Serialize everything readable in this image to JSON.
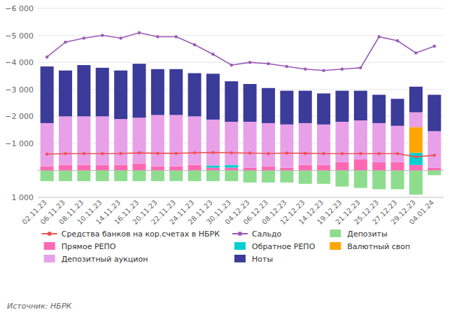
{
  "chart_data": {
    "type": "bar",
    "stacked": true,
    "grid": true,
    "legend": "bottom",
    "annotations": [
      "Источник: НБРК"
    ],
    "categories": [
      "02.11.23",
      "06.11.23",
      "08.11.23",
      "10.11.23",
      "14.11.23",
      "16.11.23",
      "20.11.23",
      "22.11.23",
      "24.11.23",
      "28.11.23",
      "30.11.23",
      "04.12.23",
      "06.12.23",
      "08.12.23",
      "12.12.23",
      "14.12.23",
      "19.12.23",
      "21.12.23",
      "25.12.23",
      "27.12.23",
      "29.12.23",
      "04.01.24"
    ],
    "ylim": [
      1000,
      -6000
    ],
    "yticks": [
      {
        "value": 1000,
        "label": "1 000"
      },
      {
        "value": 0,
        "label": null
      },
      {
        "value": -1000,
        "label": "−1 000"
      },
      {
        "value": -2000,
        "label": "−2 000"
      },
      {
        "value": -3000,
        "label": "−3 000"
      },
      {
        "value": -4000,
        "label": "−4 000"
      },
      {
        "value": -5000,
        "label": "−5 000"
      },
      {
        "value": -6000,
        "label": "−6 000"
      }
    ],
    "series": [
      {
        "name": "Средства банков на кор.счетах в НБРК",
        "type": "line",
        "marker": "circle",
        "color": "#F05050",
        "values": [
          -600,
          -620,
          -620,
          -620,
          -620,
          -650,
          -630,
          -630,
          -650,
          -660,
          -650,
          -640,
          -620,
          -640,
          -630,
          -620,
          -620,
          -620,
          -620,
          -620,
          -500,
          -560
        ]
      },
      {
        "name": "Сальдо",
        "type": "line",
        "marker": "circle",
        "color": "#9B59B6",
        "values": [
          -4200,
          -4750,
          -4900,
          -5000,
          -4900,
          -5100,
          -4950,
          -4950,
          -4650,
          -4300,
          -3900,
          -4000,
          -3950,
          -3850,
          -3750,
          -3700,
          -3750,
          -3800,
          -4950,
          -4800,
          -4350,
          -4600
        ]
      },
      {
        "name": "Депозиты",
        "type": "bar",
        "color": "#8EDD8E",
        "values": [
          400,
          400,
          400,
          400,
          400,
          400,
          400,
          400,
          400,
          400,
          400,
          450,
          450,
          450,
          500,
          500,
          600,
          650,
          700,
          700,
          900,
          180
        ]
      },
      {
        "name": "Прямое РЕПО",
        "type": "bar",
        "color": "#FF69B4",
        "values": [
          -150,
          -200,
          -200,
          -200,
          -200,
          -250,
          -150,
          -150,
          -200,
          -100,
          -100,
          -100,
          -150,
          -100,
          -200,
          -200,
          -300,
          -400,
          -300,
          -300,
          -200,
          -100
        ]
      },
      {
        "name": "Обратное РЕПО",
        "type": "bar",
        "color": "#00CED1",
        "values": [
          0,
          0,
          0,
          0,
          0,
          0,
          0,
          0,
          0,
          -80,
          -100,
          0,
          0,
          0,
          0,
          0,
          0,
          0,
          0,
          0,
          -450,
          0
        ]
      },
      {
        "name": "Валютный своп",
        "type": "bar",
        "color": "#FFA500",
        "values": [
          0,
          0,
          0,
          0,
          0,
          0,
          0,
          0,
          0,
          0,
          0,
          0,
          0,
          0,
          0,
          0,
          0,
          0,
          0,
          0,
          -950,
          0
        ]
      },
      {
        "name": "Депозитный аукцион",
        "type": "bar",
        "color": "#E8A0E8",
        "values": [
          -1600,
          -1800,
          -1800,
          -1800,
          -1700,
          -1700,
          -1900,
          -1900,
          -1800,
          -1700,
          -1600,
          -1700,
          -1600,
          -1600,
          -1550,
          -1500,
          -1500,
          -1450,
          -1450,
          -1350,
          -550,
          -1350
        ]
      },
      {
        "name": "Ноты",
        "type": "bar",
        "color": "#3B3B9A",
        "values": [
          -2100,
          -1700,
          -1900,
          -1800,
          -1800,
          -2000,
          -1700,
          -1700,
          -1600,
          -1700,
          -1500,
          -1400,
          -1300,
          -1250,
          -1200,
          -1150,
          -1150,
          -1100,
          -1050,
          -1000,
          -950,
          -1350
        ]
      }
    ]
  }
}
